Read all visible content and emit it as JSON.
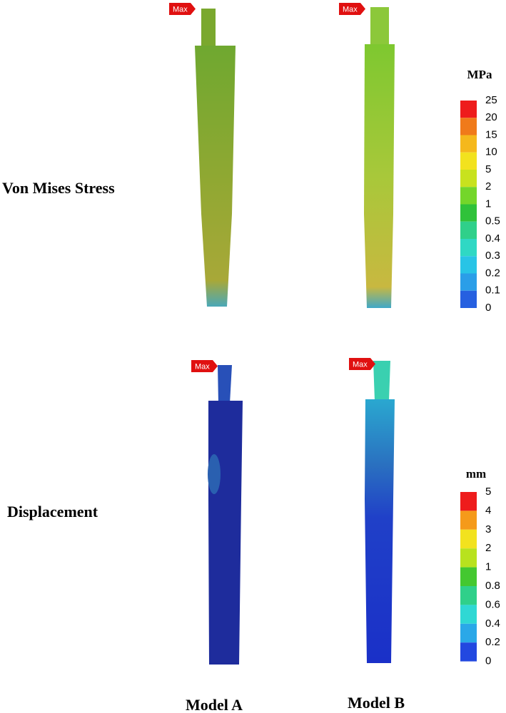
{
  "row_labels": [
    "Von Mises Stress",
    "Displacement"
  ],
  "column_labels": [
    "Model A",
    "Model B"
  ],
  "max_tags": [
    "Max",
    "Max",
    "Max",
    "Max"
  ],
  "legends": [
    {
      "unit": "MPa",
      "labels": [
        "25",
        "20",
        "15",
        "10",
        "5",
        "2",
        "1",
        "0.5",
        "0.4",
        "0.3",
        "0.2",
        "0.1",
        "0"
      ],
      "colors": [
        "#ee1c1c",
        "#f07a1a",
        "#f5b81c",
        "#f2e21e",
        "#c8e21e",
        "#74d62a",
        "#2fc23a",
        "#2fd08a",
        "#2fd8c4",
        "#28c4e6",
        "#2a9ee8",
        "#2660e0"
      ]
    },
    {
      "unit": "mm",
      "labels": [
        "5",
        "4",
        "3",
        "2",
        "1",
        "0.8",
        "0.6",
        "0.4",
        "0.2",
        "0"
      ],
      "colors": [
        "#ee1c1c",
        "#f59a1a",
        "#f2e21e",
        "#b8e21e",
        "#44c830",
        "#2fd08a",
        "#2fd8d4",
        "#2aa8e8",
        "#2248e0"
      ]
    }
  ]
}
